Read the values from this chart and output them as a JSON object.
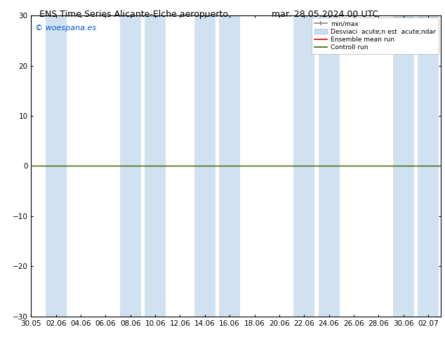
{
  "title_left": "ENS Time Series Alicante-Elche aeropuerto",
  "title_right": "mar. 28.05.2024 00 UTC",
  "ylim": [
    -30,
    30
  ],
  "yticks": [
    -30,
    -20,
    -10,
    0,
    10,
    20,
    30
  ],
  "background_color": "#ffffff",
  "plot_bg_color": "#ffffff",
  "watermark": "© woespana.es",
  "watermark_color": "#0055cc",
  "zero_line_color": "#336600",
  "ensemble_mean_color": "#cc0000",
  "shaded_band_color": "#c8ddf0",
  "shaded_band_alpha": 0.85,
  "xtick_labels": [
    "30.05",
    "02.06",
    "04.06",
    "06.06",
    "08.06",
    "10.06",
    "12.06",
    "14.06",
    "16.06",
    "18.06",
    "20.06",
    "22.06",
    "24.06",
    "26.06",
    "28.06",
    "30.06",
    "02.07"
  ],
  "legend_label_minmax": "min/max",
  "legend_label_desv": "Desviaci  acute;n est  acute;ndar",
  "legend_label_ens": "Ensemble mean run",
  "legend_label_ctrl": "Controll run",
  "minmax_color": "#888888",
  "desv_color": "#c8ddf0",
  "title_fontsize": 9,
  "tick_fontsize": 7.5,
  "watermark_fontsize": 8
}
